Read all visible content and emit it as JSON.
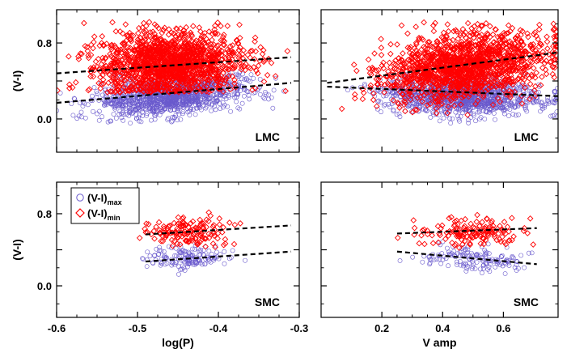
{
  "chart_data": {
    "type": "scatter",
    "colors": {
      "max": "#6a5acd",
      "min": "#ff0000",
      "fit": "#000000",
      "axes": "#000000"
    },
    "legend": {
      "placement": "top-left",
      "entries": [
        {
          "key": "max",
          "label": "(V-I)",
          "sub": "max",
          "marker": "circle"
        },
        {
          "key": "min",
          "label": "(V-I)",
          "sub": "min",
          "marker": "diamond"
        }
      ]
    },
    "panels": [
      {
        "id": "lmc-logp",
        "row": 0,
        "col": 0,
        "label": "LMC",
        "xlim": [
          -0.6,
          -0.3
        ],
        "ylim": [
          -0.35,
          1.15
        ],
        "xticks": [
          -0.6,
          -0.5,
          -0.4,
          -0.3
        ],
        "xticklabels": [
          "",
          "",
          "",
          ""
        ],
        "xlabel": "",
        "yticks": [
          0.0,
          0.4,
          0.8
        ],
        "yticklabels": [
          "0.0",
          "",
          "0.8"
        ],
        "ylabel": "(V-I)",
        "fits": {
          "min": [
            [
              -0.6,
              0.48
            ],
            [
              -0.31,
              0.65
            ]
          ],
          "max": [
            [
              -0.6,
              0.17
            ],
            [
              -0.31,
              0.38
            ]
          ]
        },
        "clouds": {
          "min": {
            "n": 1500,
            "xrange": [
              -0.6,
              -0.3
            ],
            "xcenter": -0.46,
            "xspread": 0.045,
            "ycenter": 0.58,
            "yspread": 0.16,
            "ymin": 0.28,
            "ymax": 1.02,
            "slope": 0.55
          },
          "max": {
            "n": 1200,
            "xrange": [
              -0.6,
              -0.3
            ],
            "xcenter": -0.46,
            "xspread": 0.045,
            "ycenter": 0.24,
            "yspread": 0.1,
            "ymin": -0.05,
            "ymax": 0.5,
            "slope": 0.7
          }
        }
      },
      {
        "id": "lmc-vamp",
        "row": 0,
        "col": 1,
        "label": "LMC",
        "xlim": [
          0.0,
          0.78
        ],
        "ylim": [
          -0.35,
          1.15
        ],
        "xticks": [
          0.2,
          0.4,
          0.6
        ],
        "xticklabels": [
          "",
          "",
          ""
        ],
        "xlabel": "",
        "yticks": [
          0.0,
          0.4,
          0.8
        ],
        "yticklabels": [
          "",
          "",
          ""
        ],
        "ylabel": "",
        "fits": {
          "min": [
            [
              0.02,
              0.38
            ],
            [
              0.78,
              0.7
            ]
          ],
          "max": [
            [
              0.02,
              0.34
            ],
            [
              0.78,
              0.24
            ]
          ]
        },
        "clouds": {
          "min": {
            "n": 1500,
            "xrange": [
              0.03,
              0.78
            ],
            "xcenter": 0.47,
            "xspread": 0.13,
            "ycenter": 0.56,
            "yspread": 0.17,
            "ymin": -0.02,
            "ymax": 1.02,
            "slope": 0.4
          },
          "max": {
            "n": 1200,
            "xrange": [
              0.03,
              0.78
            ],
            "xcenter": 0.47,
            "xspread": 0.13,
            "ycenter": 0.24,
            "yspread": 0.1,
            "ymin": -0.05,
            "ymax": 0.48,
            "slope": -0.12
          }
        }
      },
      {
        "id": "smc-logp",
        "row": 1,
        "col": 0,
        "label": "SMC",
        "xlim": [
          -0.6,
          -0.3
        ],
        "ylim": [
          -0.35,
          1.15
        ],
        "xticks": [
          -0.6,
          -0.5,
          -0.4,
          -0.3
        ],
        "xticklabels": [
          "-0.6",
          "-0.5",
          "-0.4",
          "-0.3"
        ],
        "xlabel": "log(P)",
        "yticks": [
          0.0,
          0.4,
          0.8
        ],
        "yticklabels": [
          "0.0",
          "",
          "0.8"
        ],
        "ylabel": "(V-I)",
        "fits": {
          "min": [
            [
              -0.49,
              0.57
            ],
            [
              -0.31,
              0.67
            ]
          ],
          "max": [
            [
              -0.49,
              0.27
            ],
            [
              -0.31,
              0.38
            ]
          ]
        },
        "clouds": {
          "min": {
            "n": 150,
            "xrange": [
              -0.5,
              -0.31
            ],
            "xcenter": -0.44,
            "xspread": 0.025,
            "ycenter": 0.6,
            "yspread": 0.08,
            "ymin": 0.42,
            "ymax": 0.9,
            "slope": 0.4
          },
          "max": {
            "n": 150,
            "xrange": [
              -0.5,
              -0.31
            ],
            "xcenter": -0.44,
            "xspread": 0.025,
            "ycenter": 0.31,
            "yspread": 0.07,
            "ymin": 0.08,
            "ymax": 0.5,
            "slope": 0.4
          }
        }
      },
      {
        "id": "smc-vamp",
        "row": 1,
        "col": 1,
        "label": "SMC",
        "xlim": [
          0.0,
          0.78
        ],
        "ylim": [
          -0.35,
          1.15
        ],
        "xticks": [
          0.2,
          0.4,
          0.6
        ],
        "xticklabels": [
          "0.2",
          "0.4",
          "0.6"
        ],
        "xlabel": "V amp",
        "yticks": [
          0.0,
          0.4,
          0.8
        ],
        "yticklabels": [
          "",
          "",
          ""
        ],
        "ylabel": "",
        "fits": {
          "min": [
            [
              0.25,
              0.58
            ],
            [
              0.71,
              0.64
            ]
          ],
          "max": [
            [
              0.25,
              0.38
            ],
            [
              0.71,
              0.24
            ]
          ]
        },
        "clouds": {
          "min": {
            "n": 150,
            "xrange": [
              0.25,
              0.7
            ],
            "xcenter": 0.5,
            "xspread": 0.08,
            "ycenter": 0.6,
            "yspread": 0.08,
            "ymin": 0.42,
            "ymax": 0.9,
            "slope": 0.1
          },
          "max": {
            "n": 150,
            "xrange": [
              0.25,
              0.7
            ],
            "xcenter": 0.5,
            "xspread": 0.08,
            "ycenter": 0.3,
            "yspread": 0.07,
            "ymin": 0.08,
            "ymax": 0.5,
            "slope": -0.25
          }
        }
      }
    ]
  }
}
